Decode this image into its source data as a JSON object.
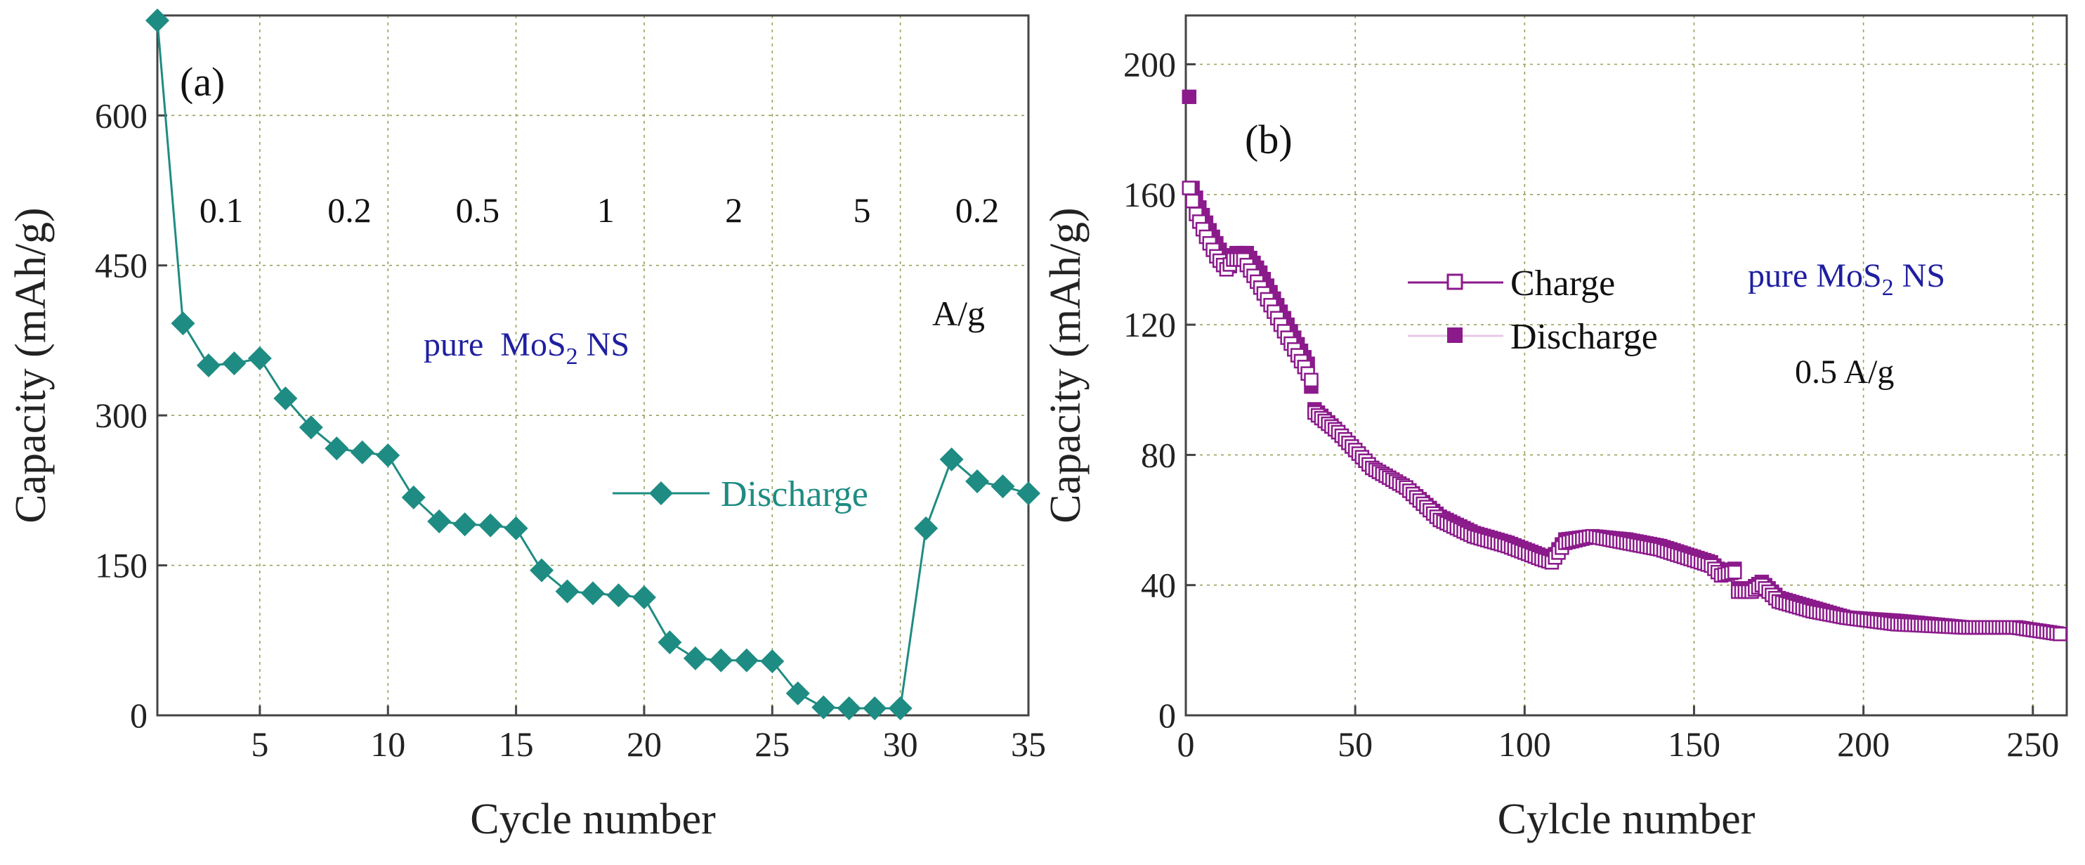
{
  "chart_data": [
    {
      "type": "line",
      "panel": "(a)",
      "xlabel": "Cycle number",
      "ylabel": "Capacity (mAh/g)",
      "xlim": [
        1,
        35
      ],
      "ylim": [
        0,
        700
      ],
      "xticks": [
        5,
        10,
        15,
        20,
        25,
        30,
        35
      ],
      "yticks": [
        0,
        150,
        300,
        450,
        600
      ],
      "grid": true,
      "rate_labels": [
        {
          "text": "0.1",
          "x": 3.5
        },
        {
          "text": "0.2",
          "x": 8.5
        },
        {
          "text": "0.5",
          "x": 13.5
        },
        {
          "text": "1",
          "x": 18.5
        },
        {
          "text": "2",
          "x": 23.5
        },
        {
          "text": "5",
          "x": 28.5
        },
        {
          "text": "0.2",
          "x": 33.0
        }
      ],
      "rate_unit": "A/g",
      "material_label": {
        "prefix": "pure  MoS",
        "sub": "2",
        "suffix": " NS"
      },
      "legend_position": "center-right",
      "color": "#1e8c82",
      "series": [
        {
          "name": "Discharge",
          "marker": "diamond",
          "x": [
            1,
            2,
            3,
            4,
            5,
            6,
            7,
            8,
            9,
            10,
            11,
            12,
            13,
            14,
            15,
            16,
            17,
            18,
            19,
            20,
            21,
            22,
            23,
            24,
            25,
            26,
            27,
            28,
            29,
            30,
            31,
            32,
            33,
            34,
            35
          ],
          "values": [
            695,
            392,
            350,
            352,
            357,
            317,
            288,
            267,
            263,
            260,
            218,
            194,
            191,
            190,
            187,
            145,
            124,
            122,
            120,
            118,
            73,
            57,
            55,
            55,
            54,
            22,
            8,
            7,
            7,
            7,
            187,
            256,
            234,
            229,
            222
          ]
        }
      ]
    },
    {
      "type": "scatter",
      "panel": "(b)",
      "xlabel": "Cylcle number",
      "ylabel": "Capacity (mAh/g)",
      "xlim": [
        0,
        260
      ],
      "ylim": [
        0,
        215
      ],
      "xticks": [
        0,
        50,
        100,
        150,
        200,
        250
      ],
      "yticks": [
        0,
        40,
        80,
        120,
        160,
        200
      ],
      "grid": true,
      "material_label": {
        "prefix": "pure MoS",
        "sub": "2",
        "suffix": " NS"
      },
      "rate_note": "0.5 A/g",
      "legend_position": "upper-center",
      "color": "#8b1a8b",
      "series": [
        {
          "name": "Charge",
          "marker": "open-square",
          "keypoints": [
            [
              1,
              162
            ],
            [
              3,
              154
            ],
            [
              6,
              147
            ],
            [
              9,
              141
            ],
            [
              12,
              137
            ],
            [
              14,
              140
            ],
            [
              17,
              140
            ],
            [
              20,
              135
            ],
            [
              25,
              126
            ],
            [
              30,
              116
            ],
            [
              35,
              107
            ],
            [
              37,
              103
            ],
            [
              38,
              93
            ],
            [
              45,
              87
            ],
            [
              55,
              76
            ],
            [
              65,
              70
            ],
            [
              75,
              60
            ],
            [
              85,
              55
            ],
            [
              95,
              52
            ],
            [
              105,
              48
            ],
            [
              108,
              47
            ],
            [
              112,
              53
            ],
            [
              120,
              55
            ],
            [
              130,
              53
            ],
            [
              140,
              51
            ],
            [
              155,
              46
            ],
            [
              158,
              43
            ],
            [
              162,
              44
            ],
            [
              163,
              38
            ],
            [
              167,
              38
            ],
            [
              170,
              40
            ],
            [
              172,
              38
            ],
            [
              175,
              35
            ],
            [
              185,
              32
            ],
            [
              195,
              30
            ],
            [
              210,
              28
            ],
            [
              230,
              27
            ],
            [
              245,
              27
            ],
            [
              258,
              25
            ]
          ]
        },
        {
          "name": "Discharge",
          "marker": "filled-square",
          "keypoints": [
            [
              1,
              190
            ],
            [
              2,
              162
            ],
            [
              4,
              156
            ],
            [
              7,
              149
            ],
            [
              10,
              143
            ],
            [
              13,
              138
            ],
            [
              15,
              142
            ],
            [
              18,
              142
            ],
            [
              22,
              136
            ],
            [
              27,
              126
            ],
            [
              32,
              116
            ],
            [
              36,
              108
            ],
            [
              38,
              94
            ],
            [
              45,
              87
            ],
            [
              55,
              76
            ],
            [
              65,
              70
            ],
            [
              75,
              61
            ],
            [
              85,
              56
            ],
            [
              95,
              53
            ],
            [
              105,
              49
            ],
            [
              108,
              48
            ],
            [
              112,
              54
            ],
            [
              120,
              55
            ],
            [
              130,
              54
            ],
            [
              140,
              52
            ],
            [
              155,
              47
            ],
            [
              158,
              44
            ],
            [
              162,
              45
            ],
            [
              163,
              39
            ],
            [
              167,
              39
            ],
            [
              170,
              41
            ],
            [
              172,
              39
            ],
            [
              175,
              36
            ],
            [
              185,
              33
            ],
            [
              195,
              30
            ],
            [
              210,
              29
            ],
            [
              230,
              27
            ],
            [
              245,
              27
            ],
            [
              258,
              25
            ]
          ]
        }
      ]
    }
  ]
}
